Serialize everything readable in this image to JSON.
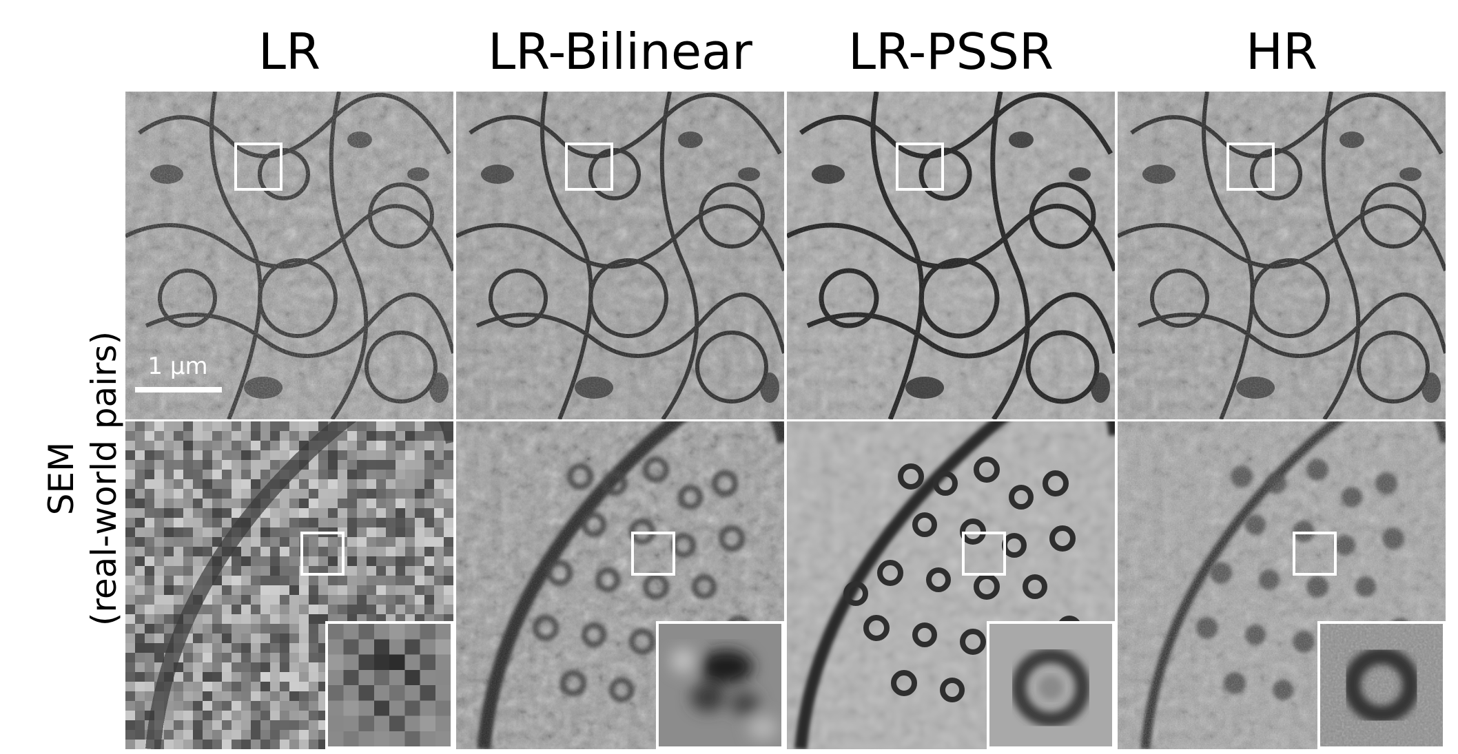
{
  "columns": [
    "LR",
    "LR-Bilinear",
    "LR-PSSR",
    "HR"
  ],
  "row_label": {
    "line1": "SEM",
    "line2": "(real-world pairs)"
  },
  "scale_bar": {
    "label": "1 µm"
  },
  "colors": {
    "frame": "#ffffff",
    "background": "#ffffff"
  }
}
